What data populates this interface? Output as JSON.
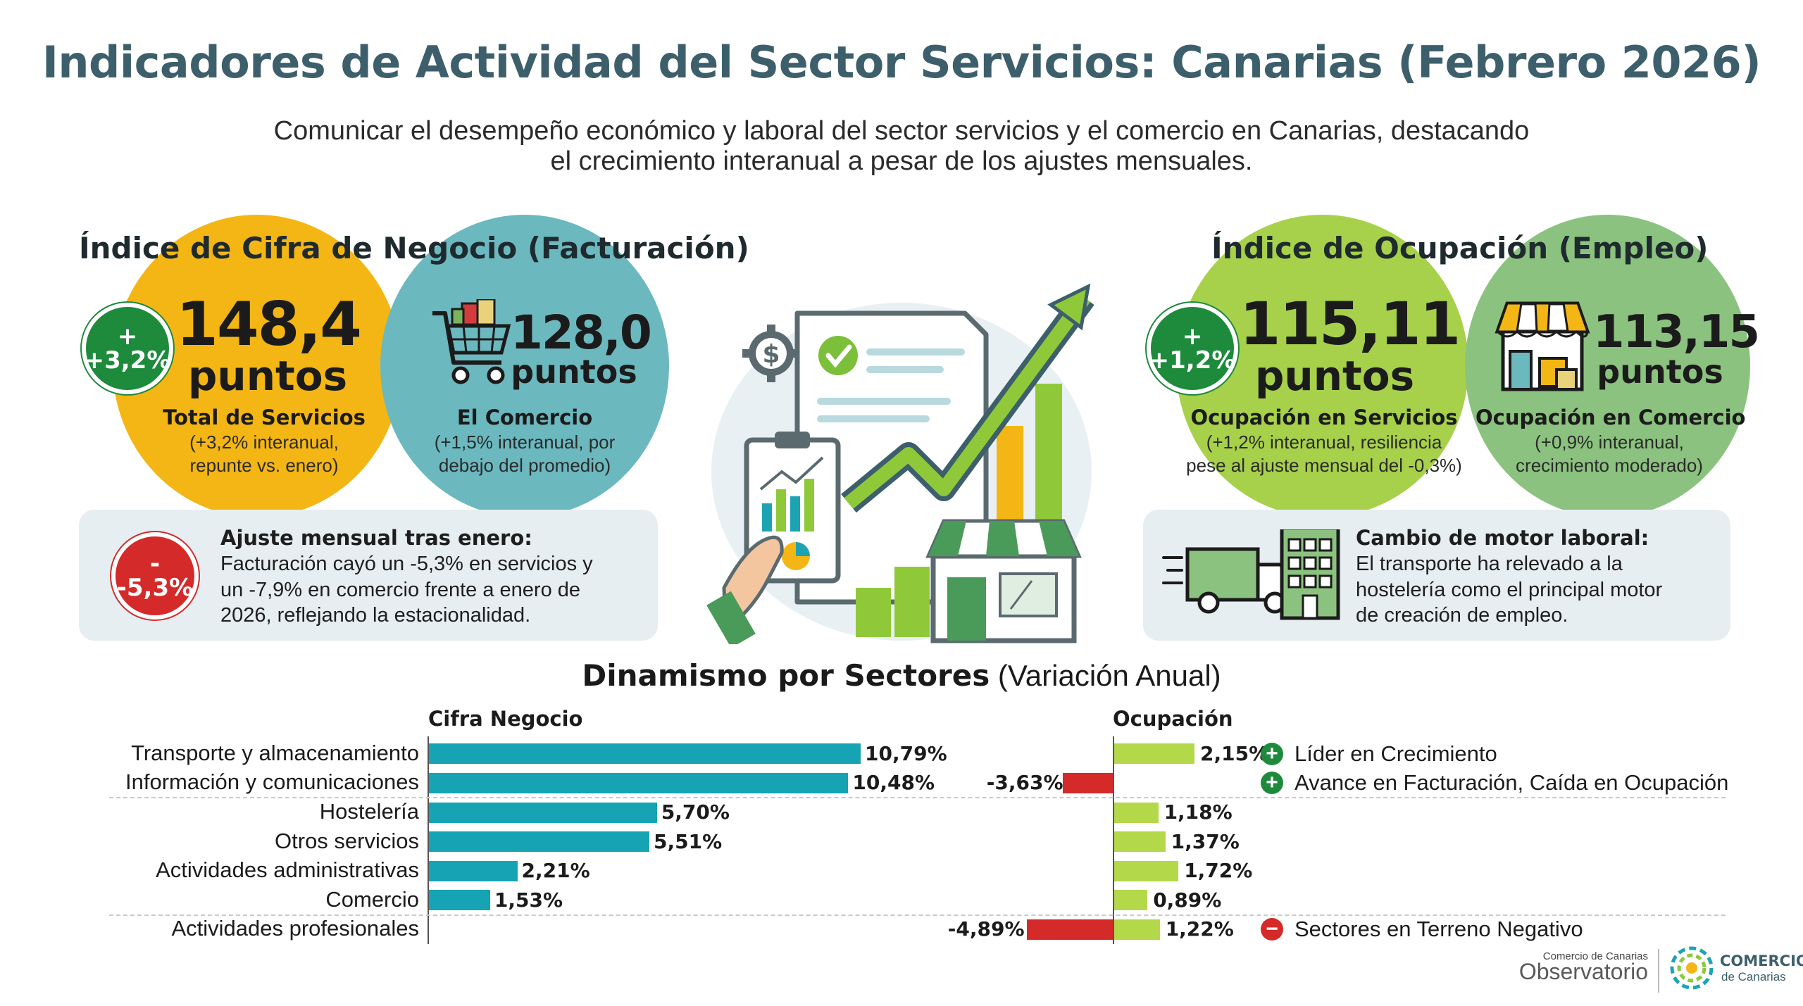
{
  "title": "Indicadores de Actividad del Sector Servicios: Canarias (Febrero 2026)",
  "subtitle_lines": [
    "Comunicar el desempeño económico y laboral del sector servicios y el comercio en Canarias, destacando",
    "el crecimiento interanual a pesar de los ajustes mensuales."
  ],
  "colors": {
    "orange": "#f4b614",
    "teal": "#6cb8bf",
    "lime": "#a7d14a",
    "sage": "#8cc27f",
    "bar_teal": "#16a3b3",
    "bar_lime": "#b3d84a",
    "negative": "#d42a2a",
    "positive": "#1e8a3c",
    "title": "#3c5f6b"
  },
  "facturacion": {
    "heading": "Índice de Cifra de Negocio (Facturación)",
    "servicios": {
      "badge_sign": "+",
      "badge_value": "+3,2%",
      "number": "148,4",
      "unit": "puntos",
      "label": "Total de Servicios",
      "note_lines": [
        "(+3,2% interanual,",
        "repunte vs. enero)"
      ]
    },
    "comercio": {
      "number": "128,0",
      "unit": "puntos",
      "label": "El Comercio",
      "note_lines": [
        "(+1,5% interanual, por",
        "debajo del promedio)"
      ],
      "icon": "shopping-cart-icon"
    },
    "panel": {
      "badge_sign": "-",
      "badge_value": "-5,3%",
      "title": "Ajuste mensual tras enero:",
      "lines": [
        "Facturación cayó un -5,3% en servicios y",
        "un -7,9% en comercio frente a enero de",
        "2026, reflejando la estacionalidad."
      ]
    }
  },
  "ocupacion": {
    "heading": "Índice de Ocupación (Empleo)",
    "servicios": {
      "badge_sign": "+",
      "badge_value": "+1,2%",
      "number": "115,11",
      "unit": "puntos",
      "label": "Ocupación en Servicios",
      "note_lines": [
        "(+1,2% interanual, resiliencia",
        "pese al ajuste mensual del -0,3%)"
      ]
    },
    "comercio": {
      "number": "113,15",
      "unit": "puntos",
      "label": "Ocupación en Comercio",
      "note_lines": [
        "(+0,9% interanual,",
        "crecimiento moderado)"
      ],
      "icon": "storefront-icon"
    },
    "panel": {
      "title": "Cambio de motor laboral:",
      "lines": [
        "El transporte ha relevado a la",
        "hostelería como el principal motor",
        "de creación de empleo."
      ],
      "icons": [
        "delivery-truck-icon",
        "building-icon"
      ]
    }
  },
  "chart_data": {
    "type": "bar",
    "title_bold": "Dinamismo por Sectores",
    "title_rest": "(Variación Anual)",
    "orientation": "horizontal",
    "categories": [
      "Transporte y almacenamiento",
      "Información y comunicaciones",
      "Hostelería",
      "Otros servicios",
      "Actividades administrativas",
      "Comercio",
      "Actividades profesionales"
    ],
    "series": [
      {
        "name": "Cifra Negocio",
        "unit": "%",
        "values": [
          10.79,
          10.48,
          5.7,
          5.51,
          2.21,
          1.53,
          -4.89
        ],
        "labels": [
          "10,79%",
          "10,48%",
          "5,70%",
          "5,51%",
          "2,21%",
          "1,53%",
          "-4,89%"
        ]
      },
      {
        "name": "Ocupación",
        "unit": "%",
        "values": [
          2.15,
          -3.63,
          1.18,
          1.37,
          1.72,
          0.89,
          1.22
        ],
        "labels": [
          "2,15%",
          "-3,63%",
          "1,18%",
          "1,37%",
          "1,72%",
          "0,89%",
          "1,22%"
        ]
      }
    ],
    "annotations": [
      {
        "category": "Transporte y almacenamiento",
        "sign": "+",
        "text": "Líder en Crecimiento"
      },
      {
        "category": "Información y comunicaciones",
        "sign": "+",
        "text": "Avance en Facturación, Caída en Ocupación"
      },
      {
        "category": "Actividades profesionales",
        "sign": "−",
        "text": "Sectores en Terreno Negativo"
      }
    ]
  },
  "footer": {
    "observatorio_small": "Comercio de Canarias",
    "observatorio_big": "Observatorio",
    "brand_big": "COMERCIO",
    "brand_small": "de Canarias"
  }
}
